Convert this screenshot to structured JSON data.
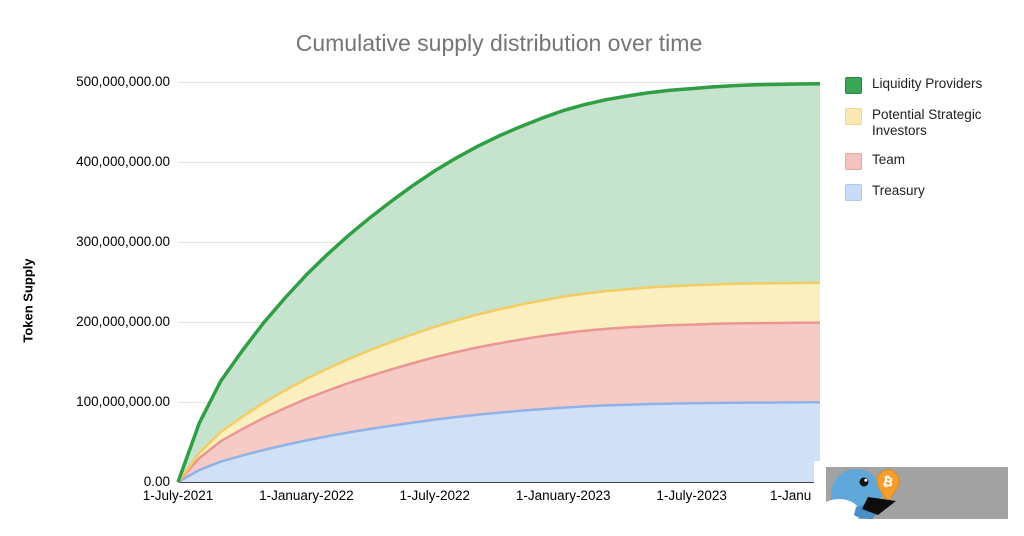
{
  "chart_data": {
    "type": "area",
    "stacked": true,
    "title": "Cumulative supply distribution over time",
    "ylabel": "Token Supply",
    "xlabel": "",
    "value_unit": "millions of tokens",
    "x_unit": "months since 1-July-2021",
    "ylim_millions": [
      0,
      500
    ],
    "grid": true,
    "legend_position": "right",
    "x_months": [
      0,
      1,
      2,
      3,
      4,
      5,
      6,
      7,
      8,
      9,
      10,
      11,
      12,
      13,
      14,
      15,
      16,
      17,
      18,
      19,
      20,
      21,
      22,
      23,
      24,
      25,
      26,
      27,
      28,
      29,
      30
    ],
    "series": [
      {
        "name": "Treasury",
        "line_color": "#8fb2e8",
        "fill_color": "#d0e0f7",
        "legend_swatch": "#c9dbf8",
        "legend_swatch_border": "#abc8f2",
        "line_width": 2.5,
        "values_millions": [
          0,
          15,
          25.5,
          33,
          40,
          46.2,
          52,
          57.2,
          62,
          66.4,
          70.5,
          74.4,
          78,
          81.2,
          84.1,
          86.7,
          89,
          91.1,
          93,
          94.5,
          95.7,
          96.6,
          97.4,
          98,
          98.4,
          98.8,
          99.1,
          99.3,
          99.4,
          99.5,
          99.6
        ]
      },
      {
        "name": "Team",
        "line_color": "#ea9794",
        "fill_color": "#f6cac5",
        "legend_swatch": "#f4c3c0",
        "legend_swatch_border": "#eda5a1",
        "line_width": 2.5,
        "values_millions": [
          0,
          15,
          25.5,
          33,
          40,
          46.2,
          52,
          57.2,
          62,
          66.4,
          70.5,
          74.4,
          78,
          81.2,
          84.1,
          86.7,
          89,
          91.1,
          93,
          94.5,
          95.7,
          96.6,
          97.4,
          98,
          98.4,
          98.8,
          99.1,
          99.3,
          99.4,
          99.5,
          99.6
        ]
      },
      {
        "name": "Potential Strategic Investors",
        "line_color": "#f3cc62",
        "fill_color": "#fbeebf",
        "legend_swatch": "#fbe8b4",
        "legend_swatch_border": "#f5d88a",
        "line_width": 2.5,
        "values_millions": [
          0,
          6.5,
          11.5,
          15.5,
          19,
          22.1,
          25,
          27.6,
          30,
          32.2,
          34.3,
          36.2,
          38,
          39.6,
          41.1,
          42.4,
          43.6,
          44.7,
          45.7,
          46.5,
          47.2,
          47.8,
          48.3,
          48.7,
          49,
          49.3,
          49.5,
          49.6,
          49.7,
          49.75,
          49.8
        ]
      },
      {
        "name": "Liquidity Providers",
        "line_color": "#2f9e44",
        "fill_color": "#c5e3cd",
        "legend_swatch": "#3aa757",
        "legend_swatch_border": "#2d8644",
        "line_width": 3.5,
        "values_millions": [
          0,
          37.5,
          63.8,
          82.5,
          100,
          115.5,
          130,
          143,
          155,
          166,
          176.3,
          186,
          195,
          203,
          210.3,
          216.8,
          222.5,
          227.8,
          232.5,
          236.3,
          239.3,
          241.5,
          243.5,
          245,
          246,
          247,
          247.8,
          248.3,
          248.5,
          248.7,
          248.9
        ]
      }
    ],
    "y_ticks": [
      {
        "value_millions": 500,
        "label": "500,000,000.00"
      },
      {
        "value_millions": 400,
        "label": "400,000,000.00"
      },
      {
        "value_millions": 300,
        "label": "300,000,000.00"
      },
      {
        "value_millions": 200,
        "label": "200,000,000.00"
      },
      {
        "value_millions": 100,
        "label": "100,000,000.00"
      },
      {
        "value_millions": 0,
        "label": "0.00"
      }
    ],
    "x_ticks": [
      {
        "t": 0,
        "label": "1-July-2021",
        "clipped": false
      },
      {
        "t": 6,
        "label": "1-January-2022",
        "clipped": false
      },
      {
        "t": 12,
        "label": "1-July-2022",
        "clipped": false
      },
      {
        "t": 18,
        "label": "1-January-2023",
        "clipped": false
      },
      {
        "t": 24,
        "label": "1-July-2023",
        "clipped": false
      },
      {
        "t": 30,
        "label": "1-Janu",
        "clipped": true
      }
    ],
    "legend_order_top_to_bottom": [
      "Liquidity Providers",
      "Potential Strategic Investors",
      "Team",
      "Treasury"
    ]
  },
  "watermark": {
    "bg_color": "#a2a2a2",
    "bird_color": "#5fa8d9",
    "bird_dark_color": "#4a90c8",
    "belly_color": "#ffffff",
    "beak_color": "#0d0d0d",
    "pin_color": "#f59e2c",
    "pin_dark_color": "#e08a1a",
    "bitcoin_symbol": "₿"
  }
}
